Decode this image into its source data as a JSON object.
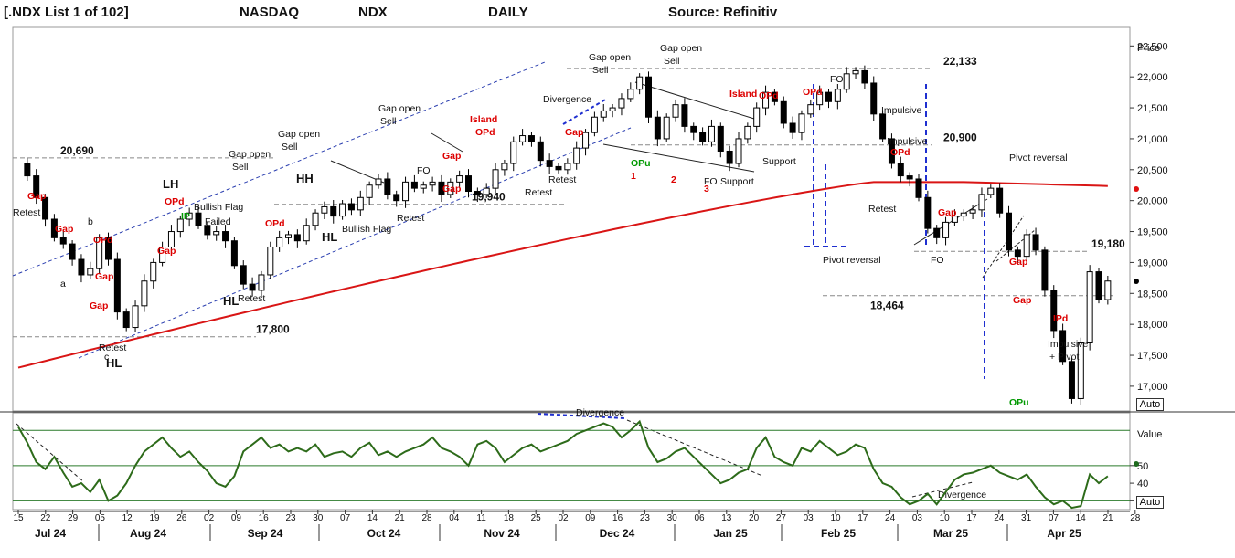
{
  "header": {
    "list": "[.NDX List 1 of 102]",
    "exchange": "NASDAQ",
    "symbol": "NDX",
    "period": "DAILY",
    "source": "Source: Refinitiv"
  },
  "buttons": {
    "auto_price": "Auto",
    "auto_value": "Auto"
  },
  "chart_data": [
    {
      "type": "candlestick",
      "title": "",
      "ylabel": "Price",
      "ylim": [
        16600,
        22800
      ],
      "yticks": [
        "22,500",
        "22,000",
        "21,500",
        "21,000",
        "20,500",
        "20,000",
        "19,500",
        "19,000",
        "18,500",
        "18,000",
        "17,500",
        "17,000"
      ],
      "ytick_values": [
        22500,
        22000,
        21500,
        21000,
        20500,
        20000,
        19500,
        19000,
        18500,
        18000,
        17500,
        17000
      ],
      "x_day_labels": [
        "15",
        "22",
        "29",
        "05",
        "12",
        "19",
        "26",
        "02",
        "09",
        "16",
        "23",
        "30",
        "07",
        "14",
        "21",
        "28",
        "04",
        "11",
        "18",
        "25",
        "02",
        "09",
        "16",
        "23",
        "30",
        "06",
        "13",
        "20",
        "27",
        "03",
        "10",
        "17",
        "24",
        "03",
        "10",
        "17",
        "24",
        "31",
        "07",
        "14",
        "21",
        "28"
      ],
      "x_month_labels": [
        "Jul 24",
        "Aug 24",
        "Sep 24",
        "Oct 24",
        "Nov 24",
        "Dec 24",
        "Jan 25",
        "Feb 25",
        "Mar 25",
        "Apr 25"
      ],
      "close_path": [
        [
          0,
          20600
        ],
        [
          1,
          20400
        ],
        [
          2,
          20050
        ],
        [
          3,
          19700
        ],
        [
          4,
          19400
        ],
        [
          5,
          19300
        ],
        [
          6,
          19050
        ],
        [
          7,
          18800
        ],
        [
          8,
          18900
        ],
        [
          9,
          19400
        ],
        [
          10,
          19050
        ],
        [
          11,
          18200
        ],
        [
          12,
          17950
        ],
        [
          13,
          18300
        ],
        [
          14,
          18700
        ],
        [
          15,
          19000
        ],
        [
          16,
          19250
        ],
        [
          17,
          19500
        ],
        [
          18,
          19700
        ],
        [
          19,
          19800
        ],
        [
          20,
          19600
        ],
        [
          21,
          19450
        ],
        [
          22,
          19500
        ],
        [
          23,
          19350
        ],
        [
          24,
          18950
        ],
        [
          25,
          18650
        ],
        [
          26,
          18550
        ],
        [
          27,
          18800
        ],
        [
          28,
          19250
        ],
        [
          29,
          19400
        ],
        [
          30,
          19450
        ],
        [
          31,
          19350
        ],
        [
          32,
          19600
        ],
        [
          33,
          19800
        ],
        [
          34,
          19900
        ],
        [
          35,
          19750
        ],
        [
          36,
          19950
        ],
        [
          37,
          19850
        ],
        [
          38,
          20050
        ],
        [
          39,
          20250
        ],
        [
          40,
          20350
        ],
        [
          41,
          20100
        ],
        [
          42,
          20000
        ],
        [
          43,
          20300
        ],
        [
          44,
          20200
        ],
        [
          45,
          20250
        ],
        [
          46,
          20300
        ],
        [
          47,
          20100
        ],
        [
          48,
          20300
        ],
        [
          49,
          20400
        ],
        [
          50,
          20150
        ],
        [
          51,
          20100
        ],
        [
          52,
          20200
        ],
        [
          53,
          20500
        ],
        [
          54,
          20600
        ],
        [
          55,
          20950
        ],
        [
          56,
          21050
        ],
        [
          57,
          20950
        ],
        [
          58,
          20650
        ],
        [
          59,
          20550
        ],
        [
          60,
          20500
        ],
        [
          61,
          20600
        ],
        [
          62,
          20850
        ],
        [
          63,
          21100
        ],
        [
          64,
          21350
        ],
        [
          65,
          21450
        ],
        [
          66,
          21500
        ],
        [
          67,
          21650
        ],
        [
          68,
          21800
        ],
        [
          69,
          22000
        ],
        [
          70,
          21350
        ],
        [
          71,
          21000
        ],
        [
          72,
          21350
        ],
        [
          73,
          21550
        ],
        [
          74,
          21200
        ],
        [
          75,
          21100
        ],
        [
          76,
          20950
        ],
        [
          77,
          21200
        ],
        [
          78,
          20800
        ],
        [
          79,
          20600
        ],
        [
          80,
          21000
        ],
        [
          81,
          21200
        ],
        [
          82,
          21500
        ],
        [
          83,
          21750
        ],
        [
          84,
          21600
        ],
        [
          85,
          21250
        ],
        [
          86,
          21100
        ],
        [
          87,
          21400
        ],
        [
          88,
          21550
        ],
        [
          89,
          21750
        ],
        [
          90,
          21600
        ],
        [
          91,
          21800
        ],
        [
          92,
          22050
        ],
        [
          93,
          22100
        ],
        [
          94,
          21900
        ],
        [
          95,
          21400
        ],
        [
          96,
          21000
        ],
        [
          97,
          20600
        ],
        [
          98,
          20400
        ],
        [
          99,
          20350
        ],
        [
          100,
          20050
        ],
        [
          101,
          19550
        ],
        [
          102,
          19400
        ],
        [
          103,
          19650
        ],
        [
          104,
          19750
        ],
        [
          105,
          19800
        ],
        [
          106,
          19850
        ],
        [
          107,
          20100
        ],
        [
          108,
          20200
        ],
        [
          109,
          19800
        ],
        [
          110,
          19200
        ],
        [
          111,
          19100
        ],
        [
          112,
          19450
        ],
        [
          113,
          19200
        ],
        [
          114,
          18550
        ],
        [
          115,
          17900
        ],
        [
          116,
          17400
        ],
        [
          117,
          16800
        ],
        [
          118,
          17700
        ],
        [
          119,
          18850
        ],
        [
          120,
          18400
        ],
        [
          121,
          18700
        ]
      ],
      "levels": [
        {
          "label": "20,690",
          "value": 20690
        },
        {
          "label": "19,940",
          "value": 19940
        },
        {
          "label": "17,800",
          "value": 17800
        },
        {
          "label": "22,133",
          "value": 22133
        },
        {
          "label": "20,900",
          "value": 20900
        },
        {
          "label": "19,180",
          "value": 19180
        },
        {
          "label": "18,464",
          "value": 18464
        }
      ],
      "annotations": [
        "Gap",
        "Gap",
        "Gap",
        "Gap",
        "Gap",
        "Gap",
        "Gap",
        "Gap",
        "Gap",
        "Gap",
        "Gap",
        "OPd",
        "OPd",
        "OPd",
        "OPd",
        "OPd",
        "OPd",
        "OPd",
        "IPd",
        "Island",
        "Island",
        "OPu",
        "OPu",
        "IP",
        "IPd",
        "Retest",
        "Retest",
        "Retest",
        "Retest",
        "Retest",
        "Retest",
        "Retest",
        "Gap open",
        "Sell",
        "Gap open",
        "Sell",
        "Gap open",
        "Sell",
        "Gap open",
        "Sell",
        "Gap open",
        "Sell",
        "Bullish Flag",
        "Failed",
        "Bullish Flag",
        "LH",
        "HH",
        "HL",
        "HL",
        "HL",
        "Divergence",
        "Support",
        "Support",
        "Pivot reversal",
        "Pivot reversal",
        "Impulsive",
        "Impulsive",
        "Impulsive",
        "+ Pivot",
        "FO",
        "FO",
        "FO",
        "FO",
        "1",
        "2",
        "3",
        "a",
        "b",
        "c"
      ]
    },
    {
      "type": "line",
      "ylabel": "Value",
      "ylim": [
        25,
        80
      ],
      "yticks": [
        "50",
        "40",
        "30"
      ],
      "ytick_values": [
        50,
        40,
        30
      ],
      "hlines": [
        70,
        50,
        30
      ],
      "values": [
        72,
        63,
        52,
        48,
        55,
        46,
        38,
        40,
        35,
        42,
        30,
        33,
        40,
        50,
        58,
        62,
        66,
        60,
        55,
        58,
        52,
        47,
        40,
        38,
        44,
        58,
        62,
        66,
        60,
        62,
        58,
        60,
        58,
        62,
        55,
        57,
        58,
        55,
        60,
        63,
        56,
        58,
        55,
        58,
        60,
        62,
        66,
        60,
        58,
        55,
        50,
        62,
        64,
        60,
        52,
        56,
        60,
        62,
        58,
        60,
        62,
        64,
        68,
        70,
        72,
        74,
        72,
        66,
        70,
        75,
        60,
        52,
        54,
        58,
        60,
        55,
        50,
        45,
        40,
        42,
        46,
        48,
        60,
        66,
        55,
        52,
        50,
        60,
        58,
        64,
        60,
        56,
        58,
        62,
        60,
        48,
        40,
        38,
        32,
        28,
        30,
        34,
        28,
        35,
        42,
        45,
        46,
        48,
        50,
        46,
        44,
        42,
        45,
        38,
        32,
        28,
        30,
        26,
        27,
        45,
        40,
        44
      ]
    }
  ]
}
